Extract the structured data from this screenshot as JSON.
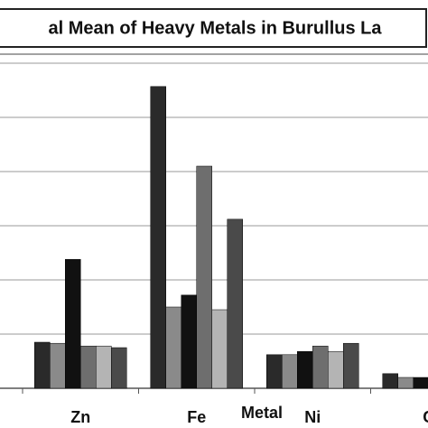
{
  "chart_data": {
    "type": "bar",
    "title": "al Mean of Heavy Metals in Burullus La",
    "x_label": "Metal",
    "categories": [
      "Zn",
      "Fe",
      "Ni",
      "C"
    ],
    "series": [
      {
        "color": "#2a2a2a",
        "values": [
          0.85,
          5.57,
          0.62,
          0.27
        ]
      },
      {
        "color": "#8a8a8a",
        "values": [
          0.83,
          1.5,
          0.62,
          0.2
        ]
      },
      {
        "color": "#111111",
        "values": [
          2.38,
          1.72,
          0.68,
          0.2
        ]
      },
      {
        "color": "#6e6e6e",
        "values": [
          0.78,
          4.1,
          0.78,
          null
        ]
      },
      {
        "color": "#b4b4b4",
        "values": [
          0.78,
          1.45,
          0.68,
          null
        ]
      },
      {
        "color": "#4a4a4a",
        "values": [
          0.75,
          3.12,
          0.83,
          null
        ]
      }
    ],
    "ylim": [
      0,
      6
    ],
    "yticks": [
      0,
      1,
      2,
      3,
      4,
      5,
      6
    ],
    "grid": true
  }
}
